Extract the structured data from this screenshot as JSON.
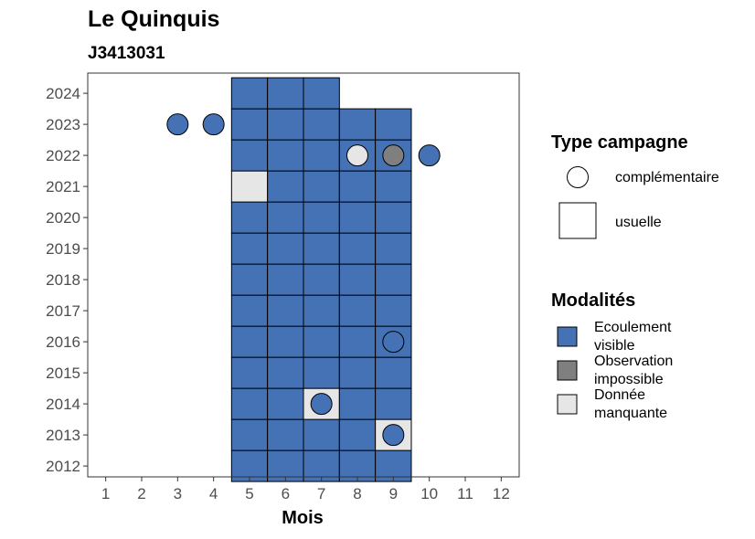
{
  "chart_data": {
    "type": "heatmap",
    "title": "Le Quinquis",
    "subtitle": "J3413031",
    "xlabel": "Mois",
    "ylabel": "",
    "x_ticks": [
      1,
      2,
      3,
      4,
      5,
      6,
      7,
      8,
      9,
      10,
      11,
      12
    ],
    "y_ticks": [
      2012,
      2013,
      2014,
      2015,
      2016,
      2017,
      2018,
      2019,
      2020,
      2021,
      2022,
      2023,
      2024
    ],
    "grid": false,
    "colors": {
      "Ecoulement visible": "#4472b4",
      "Observation impossible": "#7f7f7f",
      "Donnée manquante": "#e6e6e6"
    },
    "legend": {
      "position": "right",
      "type_title": "Type campagne",
      "type_items": [
        {
          "label": "complémentaire",
          "shape": "circle"
        },
        {
          "label": "usuelle",
          "shape": "square"
        }
      ],
      "modalite_title": "Modalités",
      "modalite_items": [
        {
          "label_lines": [
            "Ecoulement",
            "visible"
          ],
          "key": "Ecoulement visible"
        },
        {
          "label_lines": [
            "Observation",
            "impossible"
          ],
          "key": "Observation impossible"
        },
        {
          "label_lines": [
            "Donnée",
            "manquante"
          ],
          "key": "Donnée manquante"
        }
      ]
    },
    "usuelle": [
      {
        "year": 2012,
        "month": 5,
        "modalite": "Ecoulement visible"
      },
      {
        "year": 2012,
        "month": 6,
        "modalite": "Ecoulement visible"
      },
      {
        "year": 2012,
        "month": 7,
        "modalite": "Ecoulement visible"
      },
      {
        "year": 2012,
        "month": 8,
        "modalite": "Ecoulement visible"
      },
      {
        "year": 2012,
        "month": 9,
        "modalite": "Ecoulement visible"
      },
      {
        "year": 2013,
        "month": 5,
        "modalite": "Ecoulement visible"
      },
      {
        "year": 2013,
        "month": 6,
        "modalite": "Ecoulement visible"
      },
      {
        "year": 2013,
        "month": 7,
        "modalite": "Ecoulement visible"
      },
      {
        "year": 2013,
        "month": 8,
        "modalite": "Ecoulement visible"
      },
      {
        "year": 2013,
        "month": 9,
        "modalite": "Donnée manquante"
      },
      {
        "year": 2014,
        "month": 5,
        "modalite": "Ecoulement visible"
      },
      {
        "year": 2014,
        "month": 6,
        "modalite": "Ecoulement visible"
      },
      {
        "year": 2014,
        "month": 7,
        "modalite": "Donnée manquante"
      },
      {
        "year": 2014,
        "month": 8,
        "modalite": "Ecoulement visible"
      },
      {
        "year": 2014,
        "month": 9,
        "modalite": "Ecoulement visible"
      },
      {
        "year": 2015,
        "month": 5,
        "modalite": "Ecoulement visible"
      },
      {
        "year": 2015,
        "month": 6,
        "modalite": "Ecoulement visible"
      },
      {
        "year": 2015,
        "month": 7,
        "modalite": "Ecoulement visible"
      },
      {
        "year": 2015,
        "month": 8,
        "modalite": "Ecoulement visible"
      },
      {
        "year": 2015,
        "month": 9,
        "modalite": "Ecoulement visible"
      },
      {
        "year": 2016,
        "month": 5,
        "modalite": "Ecoulement visible"
      },
      {
        "year": 2016,
        "month": 6,
        "modalite": "Ecoulement visible"
      },
      {
        "year": 2016,
        "month": 7,
        "modalite": "Ecoulement visible"
      },
      {
        "year": 2016,
        "month": 8,
        "modalite": "Ecoulement visible"
      },
      {
        "year": 2016,
        "month": 9,
        "modalite": "Ecoulement visible"
      },
      {
        "year": 2017,
        "month": 5,
        "modalite": "Ecoulement visible"
      },
      {
        "year": 2017,
        "month": 6,
        "modalite": "Ecoulement visible"
      },
      {
        "year": 2017,
        "month": 7,
        "modalite": "Ecoulement visible"
      },
      {
        "year": 2017,
        "month": 8,
        "modalite": "Ecoulement visible"
      },
      {
        "year": 2017,
        "month": 9,
        "modalite": "Ecoulement visible"
      },
      {
        "year": 2018,
        "month": 5,
        "modalite": "Ecoulement visible"
      },
      {
        "year": 2018,
        "month": 6,
        "modalite": "Ecoulement visible"
      },
      {
        "year": 2018,
        "month": 7,
        "modalite": "Ecoulement visible"
      },
      {
        "year": 2018,
        "month": 8,
        "modalite": "Ecoulement visible"
      },
      {
        "year": 2018,
        "month": 9,
        "modalite": "Ecoulement visible"
      },
      {
        "year": 2019,
        "month": 5,
        "modalite": "Ecoulement visible"
      },
      {
        "year": 2019,
        "month": 6,
        "modalite": "Ecoulement visible"
      },
      {
        "year": 2019,
        "month": 7,
        "modalite": "Ecoulement visible"
      },
      {
        "year": 2019,
        "month": 8,
        "modalite": "Ecoulement visible"
      },
      {
        "year": 2019,
        "month": 9,
        "modalite": "Ecoulement visible"
      },
      {
        "year": 2020,
        "month": 5,
        "modalite": "Ecoulement visible"
      },
      {
        "year": 2020,
        "month": 6,
        "modalite": "Ecoulement visible"
      },
      {
        "year": 2020,
        "month": 7,
        "modalite": "Ecoulement visible"
      },
      {
        "year": 2020,
        "month": 8,
        "modalite": "Ecoulement visible"
      },
      {
        "year": 2020,
        "month": 9,
        "modalite": "Ecoulement visible"
      },
      {
        "year": 2021,
        "month": 5,
        "modalite": "Donnée manquante"
      },
      {
        "year": 2021,
        "month": 6,
        "modalite": "Ecoulement visible"
      },
      {
        "year": 2021,
        "month": 7,
        "modalite": "Ecoulement visible"
      },
      {
        "year": 2021,
        "month": 8,
        "modalite": "Ecoulement visible"
      },
      {
        "year": 2021,
        "month": 9,
        "modalite": "Ecoulement visible"
      },
      {
        "year": 2022,
        "month": 5,
        "modalite": "Ecoulement visible"
      },
      {
        "year": 2022,
        "month": 6,
        "modalite": "Ecoulement visible"
      },
      {
        "year": 2022,
        "month": 7,
        "modalite": "Ecoulement visible"
      },
      {
        "year": 2022,
        "month": 8,
        "modalite": "Ecoulement visible"
      },
      {
        "year": 2022,
        "month": 9,
        "modalite": "Ecoulement visible"
      },
      {
        "year": 2023,
        "month": 5,
        "modalite": "Ecoulement visible"
      },
      {
        "year": 2023,
        "month": 6,
        "modalite": "Ecoulement visible"
      },
      {
        "year": 2023,
        "month": 7,
        "modalite": "Ecoulement visible"
      },
      {
        "year": 2023,
        "month": 8,
        "modalite": "Ecoulement visible"
      },
      {
        "year": 2023,
        "month": 9,
        "modalite": "Ecoulement visible"
      },
      {
        "year": 2024,
        "month": 5,
        "modalite": "Ecoulement visible"
      },
      {
        "year": 2024,
        "month": 6,
        "modalite": "Ecoulement visible"
      },
      {
        "year": 2024,
        "month": 7,
        "modalite": "Ecoulement visible"
      }
    ],
    "complementaire": [
      {
        "year": 2023,
        "month": 3,
        "modalite": "Ecoulement visible"
      },
      {
        "year": 2023,
        "month": 4,
        "modalite": "Ecoulement visible"
      },
      {
        "year": 2022,
        "month": 8,
        "modalite": "Donnée manquante"
      },
      {
        "year": 2022,
        "month": 9,
        "modalite": "Observation impossible"
      },
      {
        "year": 2022,
        "month": 10,
        "modalite": "Ecoulement visible"
      },
      {
        "year": 2016,
        "month": 9,
        "modalite": "Ecoulement visible"
      },
      {
        "year": 2014,
        "month": 7,
        "modalite": "Ecoulement visible"
      },
      {
        "year": 2013,
        "month": 9,
        "modalite": "Ecoulement visible"
      }
    ]
  }
}
